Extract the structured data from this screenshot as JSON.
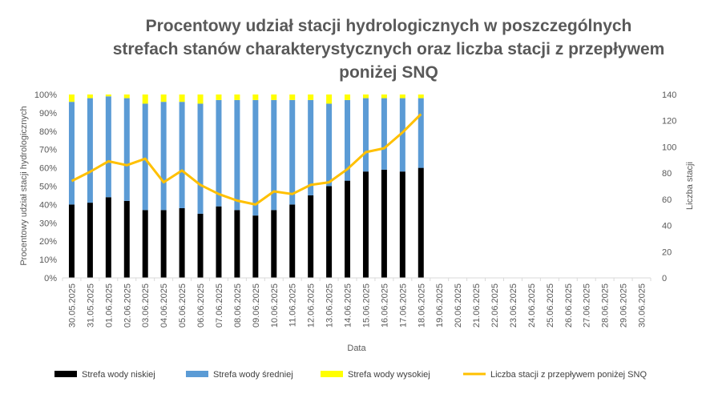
{
  "chart_data": {
    "type": "bar",
    "stacked": true,
    "title": "Procentowy udział stacji hydrologicznych w poszczególnych strefach stanów charakterystycznych oraz liczba stacji z przepływem poniżej SNQ",
    "xlabel": "Data",
    "ylabel": "Procentowy udział stacji hydrologicznych",
    "y2label": "Liczba stacji",
    "ylim": [
      0,
      100
    ],
    "y2lim": [
      0,
      140
    ],
    "yticks": [
      "0%",
      "10%",
      "20%",
      "30%",
      "40%",
      "50%",
      "60%",
      "70%",
      "80%",
      "90%",
      "100%"
    ],
    "y2ticks": [
      "0",
      "20",
      "40",
      "60",
      "80",
      "100",
      "120",
      "140"
    ],
    "grid": false,
    "legend_position": "bottom",
    "categories": [
      "30.05.2025",
      "31.05.2025",
      "01.06.2025",
      "02.06.2025",
      "03.06.2025",
      "04.06.2025",
      "05.06.2025",
      "06.06.2025",
      "07.06.2025",
      "08.06.2025",
      "09.06.2025",
      "10.06.2025",
      "11.06.2025",
      "12.06.2025",
      "13.06.2025",
      "14.06.2025",
      "15.06.2025",
      "16.06.2025",
      "17.06.2025",
      "18.06.2025",
      "19.06.2025",
      "20.06.2025",
      "21.06.2025",
      "22.06.2025",
      "23.06.2025",
      "24.06.2025",
      "25.06.2025",
      "26.06.2025",
      "27.06.2025",
      "28.06.2025",
      "29.06.2025",
      "30.06.2025"
    ],
    "series": [
      {
        "name": "Strefa wody niskiej",
        "kind": "bar",
        "axis": "left",
        "color": "#000000",
        "values": [
          40,
          41,
          44,
          42,
          37,
          37,
          38,
          35,
          39,
          37,
          34,
          37,
          40,
          45,
          50,
          53,
          58,
          59,
          58,
          60,
          null,
          null,
          null,
          null,
          null,
          null,
          null,
          null,
          null,
          null,
          null,
          null
        ]
      },
      {
        "name": "Strefa wody średniej",
        "kind": "bar",
        "axis": "left",
        "color": "#5B9BD5",
        "values": [
          56,
          57,
          55,
          56,
          58,
          59,
          58,
          60,
          58,
          60,
          63,
          60,
          57,
          52,
          45,
          44,
          40,
          39,
          40,
          38,
          null,
          null,
          null,
          null,
          null,
          null,
          null,
          null,
          null,
          null,
          null,
          null
        ]
      },
      {
        "name": "Strefa wody wysokiej",
        "kind": "bar",
        "axis": "left",
        "color": "#FFFF00",
        "values": [
          4,
          2,
          1,
          2,
          5,
          4,
          4,
          5,
          3,
          3,
          3,
          3,
          3,
          3,
          5,
          3,
          2,
          2,
          2,
          2,
          null,
          null,
          null,
          null,
          null,
          null,
          null,
          null,
          null,
          null,
          null,
          null
        ]
      },
      {
        "name": "Liczba stacji z przepływem poniżej SNQ",
        "kind": "line",
        "axis": "right",
        "color": "#FFC000",
        "values": [
          74,
          81,
          89,
          86,
          91,
          73,
          82,
          71,
          64,
          59,
          56,
          66,
          64,
          71,
          73,
          83,
          96,
          99,
          111,
          125,
          null,
          null,
          null,
          null,
          null,
          null,
          null,
          null,
          null,
          null,
          null,
          null
        ]
      }
    ]
  }
}
